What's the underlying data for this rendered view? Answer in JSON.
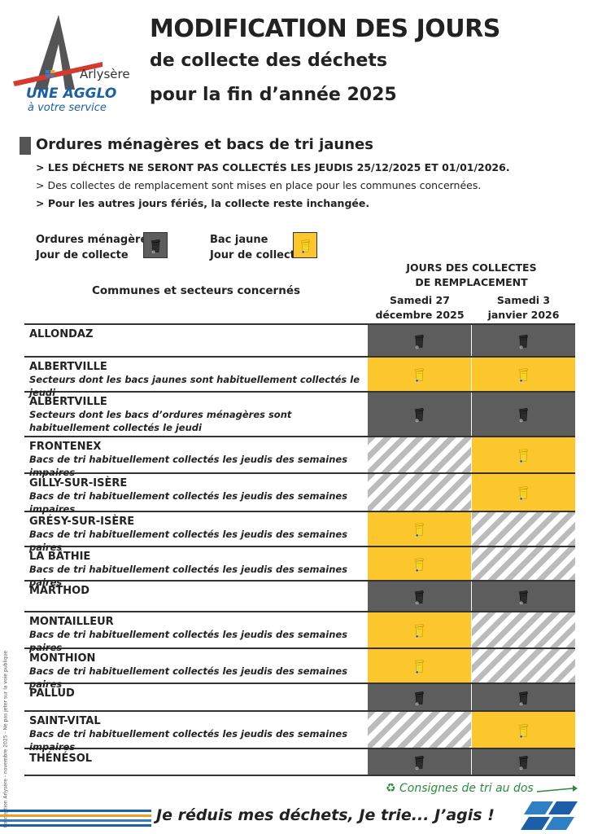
{
  "logo": {
    "brand": "Arlysère",
    "line1": "UNE AGGLO",
    "line2": "à votre service"
  },
  "header": {
    "title": "MODIFICATION DES JOURS",
    "subtitle_lines": [
      "de collecte des déchets",
      "pour la fin d’année 2025"
    ]
  },
  "section": {
    "title": "Ordures ménagères et bacs de tri jaunes"
  },
  "notes": [
    {
      "text": "> LES DÉCHETS NE SERONT PAS COLLECTÉS LES JEUDIS 25/12/2025 ET 01/01/2026.",
      "bold": true
    },
    {
      "text": "> Des collectes de remplacement sont mises en place pour les communes concernées.",
      "bold": false
    },
    {
      "text": "> Pour les autres jours fériés, la collecte reste inchangée.",
      "bold": true
    }
  ],
  "legend": [
    {
      "kind": "menagere",
      "lines": [
        "Ordures ménagères",
        "Jour de collecte"
      ],
      "color": "#5d5d5d"
    },
    {
      "kind": "jaune",
      "lines": [
        "Bac jaune",
        "Jour de collecte"
      ],
      "color": "#fcc72c"
    }
  ],
  "table": {
    "name_header": "Communes et secteurs concernés",
    "group_header_lines": [
      "JOURS DES COLLECTES",
      "DE REMPLACEMENT"
    ],
    "columns": [
      [
        "Samedi 27",
        "décembre 2025"
      ],
      [
        "Samedi 3",
        "janvier 2026"
      ]
    ],
    "rows": [
      {
        "name": "ALLONDAZ",
        "cells": [
          "menagere",
          "menagere"
        ]
      },
      {
        "name": "ALBERTVILLE",
        "detail": "Secteurs dont les bacs jaunes sont habituellement collectés le jeudi",
        "cells": [
          "jaune",
          "jaune"
        ]
      },
      {
        "name": "ALBERTVILLE",
        "detail": "Secteurs dont les bacs d’ordures ménagères sont habituellement collectés le jeudi",
        "cells": [
          "menagere",
          "menagere"
        ]
      },
      {
        "name": "FRONTENEX",
        "detail": "Bacs de tri habituellement collectés les jeudis des semaines impaires",
        "cells": [
          null,
          "jaune"
        ]
      },
      {
        "name": "GILLY-SUR-ISÈRE",
        "detail": "Bacs de tri habituellement collectés les jeudis des semaines impaires",
        "cells": [
          null,
          "jaune"
        ]
      },
      {
        "name": "GRÉSY-SUR-ISÈRE",
        "detail": "Bacs de tri habituellement collectés les jeudis des semaines paires",
        "cells": [
          "jaune",
          null
        ]
      },
      {
        "name": "LA BÂTHIE",
        "detail": "Bacs de tri habituellement collectés les jeudis des semaines paires",
        "cells": [
          "jaune",
          null
        ]
      },
      {
        "name": "MARTHOD",
        "cells": [
          "menagere",
          "menagere"
        ]
      },
      {
        "name": "MONTAILLEUR",
        "detail": "Bacs de tri habituellement collectés les jeudis des semaines paires",
        "cells": [
          "jaune",
          null
        ]
      },
      {
        "name": "MONTHION",
        "detail": "Bacs de tri habituellement collectés les jeudis des semaines paires",
        "cells": [
          "jaune",
          null
        ]
      },
      {
        "name": "PALLUD",
        "cells": [
          "menagere",
          "menagere"
        ]
      },
      {
        "name": "SAINT-VITAL",
        "detail": "Bacs de tri habituellement collectés les jeudis des semaines impaires",
        "cells": [
          null,
          "jaune"
        ]
      },
      {
        "name": "THÉNÉSOL",
        "cells": [
          "menagere",
          "menagere"
        ]
      }
    ]
  },
  "footer": {
    "link": "Consignes de tri au dos",
    "slogan": "Je réduis mes déchets, Je trie... J’agis !",
    "side_note": "Conception Arlysère - novembre 2025 - Ne pas jeter sur la voie publique"
  }
}
